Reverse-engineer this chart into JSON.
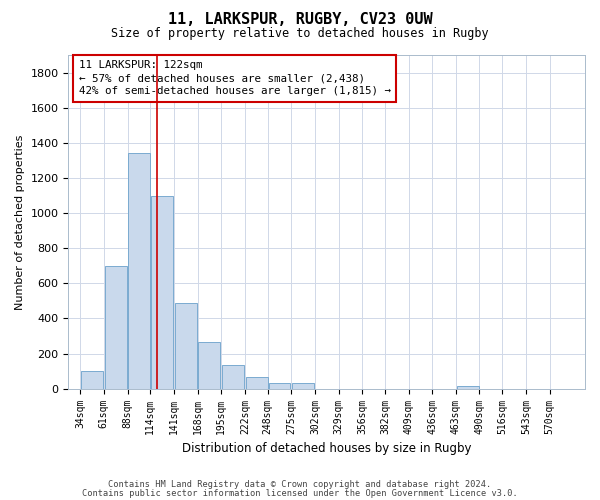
{
  "title": "11, LARKSPUR, RUGBY, CV23 0UW",
  "subtitle": "Size of property relative to detached houses in Rugby",
  "xlabel": "Distribution of detached houses by size in Rugby",
  "ylabel": "Number of detached properties",
  "bar_color": "#c9d9ec",
  "bar_edge_color": "#7aaad0",
  "grid_color": "#d0d8e8",
  "annotation_box_color": "#cc0000",
  "property_line_color": "#cc0000",
  "footnote1": "Contains HM Land Registry data © Crown copyright and database right 2024.",
  "footnote2": "Contains public sector information licensed under the Open Government Licence v3.0.",
  "annotation_lines": [
    "11 LARKSPUR: 122sqm",
    "← 57% of detached houses are smaller (2,438)",
    "42% of semi-detached houses are larger (1,815) →"
  ],
  "property_sqm": 122,
  "categories": [
    "34sqm",
    "61sqm",
    "88sqm",
    "114sqm",
    "141sqm",
    "168sqm",
    "195sqm",
    "222sqm",
    "248sqm",
    "275sqm",
    "302sqm",
    "329sqm",
    "356sqm",
    "382sqm",
    "409sqm",
    "436sqm",
    "463sqm",
    "490sqm",
    "516sqm",
    "543sqm",
    "570sqm"
  ],
  "bin_starts": [
    34,
    61,
    88,
    114,
    141,
    168,
    195,
    222,
    248,
    275,
    302,
    329,
    356,
    382,
    409,
    436,
    463,
    490,
    516,
    543,
    570
  ],
  "bin_width": 27,
  "values": [
    100,
    700,
    1340,
    1100,
    490,
    265,
    135,
    65,
    30,
    30,
    0,
    0,
    0,
    0,
    0,
    0,
    15,
    0,
    0,
    0,
    0
  ],
  "ylim": [
    0,
    1900
  ],
  "yticks": [
    0,
    200,
    400,
    600,
    800,
    1000,
    1200,
    1400,
    1600,
    1800
  ],
  "fig_width": 6.0,
  "fig_height": 5.0
}
